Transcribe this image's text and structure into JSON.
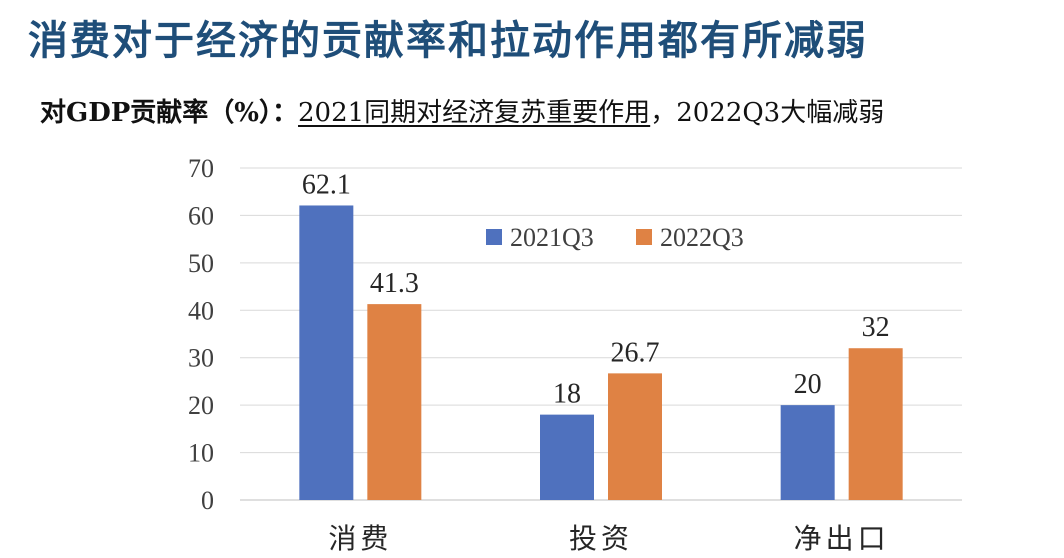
{
  "page": {
    "title": "消费对于经济的贡献率和拉动作用都有所减弱",
    "subtitle_lead": "对GDP贡献率（%）：",
    "subtitle_underlined": "2021同期对经济复苏重要作用",
    "subtitle_tail": "，2022Q3大幅减弱"
  },
  "chart_data": {
    "type": "bar",
    "categories": [
      "消费",
      "投资",
      "净出口"
    ],
    "series": [
      {
        "name": "2021Q3",
        "values": [
          62.1,
          18,
          20
        ],
        "labels": [
          "62.1",
          "18",
          "20"
        ],
        "color": "#4f71be"
      },
      {
        "name": "2022Q3",
        "values": [
          41.3,
          26.7,
          32
        ],
        "labels": [
          "41.3",
          "26.7",
          "32"
        ],
        "color": "#df8244"
      }
    ],
    "ylim": [
      0,
      70
    ],
    "yticks": [
      0,
      10,
      20,
      30,
      40,
      50,
      60,
      70
    ],
    "grid": true,
    "legend": "top-center"
  }
}
